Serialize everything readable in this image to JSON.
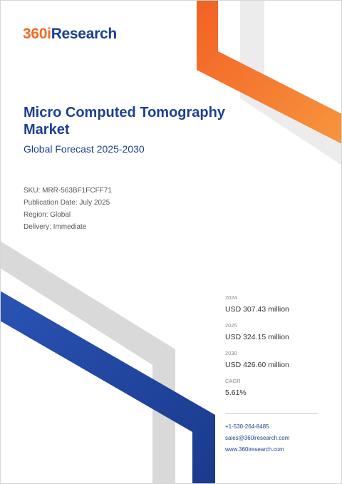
{
  "brand": {
    "logo_prefix": "360i",
    "logo_suffix": "Research"
  },
  "report": {
    "title": "Micro Computed Tomography Market",
    "subtitle": "Global Forecast 2025-2030"
  },
  "meta": {
    "sku": "SKU: MRR-563BF1FCFF71",
    "publication_date": "Publication Date: July 2025",
    "region": "Region: Global",
    "delivery": "Delivery: Immediate"
  },
  "stats": [
    {
      "label": "2024",
      "value": "USD 307.43 million"
    },
    {
      "label": "2025",
      "value": "USD 324.15 million"
    },
    {
      "label": "2030",
      "value": "USD 426.60 million"
    },
    {
      "label": "CAGR",
      "value": "5.61%"
    }
  ],
  "contact": {
    "phone": "+1-530-264-8485",
    "email": "sales@360iresearch.com",
    "website": "www.360iresearch.com"
  },
  "colors": {
    "orange": "#f26a28",
    "navy": "#1c3f94",
    "light_gray": "#ececec",
    "gray": "#d9d9d9"
  }
}
